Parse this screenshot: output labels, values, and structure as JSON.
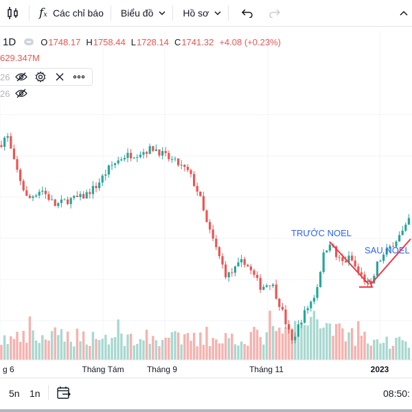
{
  "toolbar": {
    "indicators_label": "Các chỉ báo",
    "chart_type_label": "Biểu đồ",
    "profile_label": "Hồ sơ"
  },
  "legend": {
    "interval": "1D",
    "open_label": "O",
    "open": "1748.17",
    "high_label": "H",
    "high": "1758.44",
    "low_label": "L",
    "low": "1728.14",
    "close_label": "C",
    "close": "1741.32",
    "change": "+4.08 (+0.23%)",
    "volume": "629.347M",
    "indicator1_value": "26",
    "indicator2_value": "26"
  },
  "bottombar": {
    "range_5y": "5n",
    "range_1y": "1n",
    "time": "08:50:"
  },
  "colors": {
    "up": "#26a69a",
    "down": "#ef5350",
    "vol_up": "#a8d8d0",
    "vol_down": "#f7b1ae",
    "annotation": "#2962ff",
    "arrow": "#f23645"
  },
  "chart_data": {
    "type": "candlestick",
    "title": "",
    "x_tick_labels": [
      "g 6",
      "Tháng Tám",
      "Tháng 9",
      "Tháng 11",
      "2023"
    ],
    "annotations": [
      "TRƯỚC NOEL",
      "SAU NOEL"
    ],
    "price_waypoints": [
      [
        0,
        1420
      ],
      [
        10,
        1440
      ],
      [
        20,
        1390
      ],
      [
        40,
        1320
      ],
      [
        60,
        1340
      ],
      [
        80,
        1310
      ],
      [
        100,
        1320
      ],
      [
        120,
        1325
      ],
      [
        140,
        1345
      ],
      [
        160,
        1380
      ],
      [
        180,
        1400
      ],
      [
        200,
        1405
      ],
      [
        225,
        1415
      ],
      [
        240,
        1400
      ],
      [
        260,
        1385
      ],
      [
        275,
        1370
      ],
      [
        290,
        1330
      ],
      [
        300,
        1280
      ],
      [
        315,
        1230
      ],
      [
        330,
        1180
      ],
      [
        340,
        1190
      ],
      [
        355,
        1210
      ],
      [
        365,
        1190
      ],
      [
        380,
        1160
      ],
      [
        395,
        1170
      ],
      [
        410,
        1120
      ],
      [
        425,
        1060
      ],
      [
        440,
        1105
      ],
      [
        460,
        1150
      ],
      [
        470,
        1215
      ],
      [
        480,
        1245
      ],
      [
        490,
        1215
      ],
      [
        500,
        1205
      ],
      [
        510,
        1215
      ],
      [
        520,
        1190
      ],
      [
        530,
        1175
      ],
      [
        540,
        1160
      ],
      [
        550,
        1205
      ],
      [
        560,
        1220
      ],
      [
        575,
        1245
      ],
      [
        590,
        1265
      ],
      [
        600,
        1300
      ]
    ],
    "price_ylim": [
      1050,
      1560
    ],
    "volume_profile": [
      [
        0,
        0.55
      ],
      [
        100,
        0.65
      ],
      [
        200,
        0.6
      ],
      [
        300,
        0.55
      ],
      [
        400,
        0.7
      ],
      [
        430,
        0.85
      ],
      [
        460,
        1.0
      ],
      [
        480,
        1.05
      ],
      [
        500,
        0.8
      ],
      [
        530,
        0.55
      ],
      [
        560,
        0.5
      ],
      [
        600,
        0.5
      ]
    ]
  }
}
